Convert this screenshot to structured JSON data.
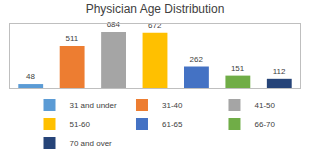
{
  "chart_data": {
    "type": "bar",
    "title": "Physician Age Distribution",
    "categories": [
      "31 and under",
      "31-40",
      "41-50",
      "51-60",
      "61-65",
      "66-70",
      "70 and over"
    ],
    "values": [
      48,
      511,
      684,
      672,
      262,
      151,
      112
    ],
    "colors": [
      "#5b9bd5",
      "#ed7d31",
      "#a5a5a5",
      "#ffc000",
      "#4472c4",
      "#70ad47",
      "#264478"
    ],
    "ylim": [
      0,
      780
    ],
    "yticks": [],
    "grid": false,
    "tick_labels": false,
    "data_labels": true,
    "legend": "bottom"
  }
}
